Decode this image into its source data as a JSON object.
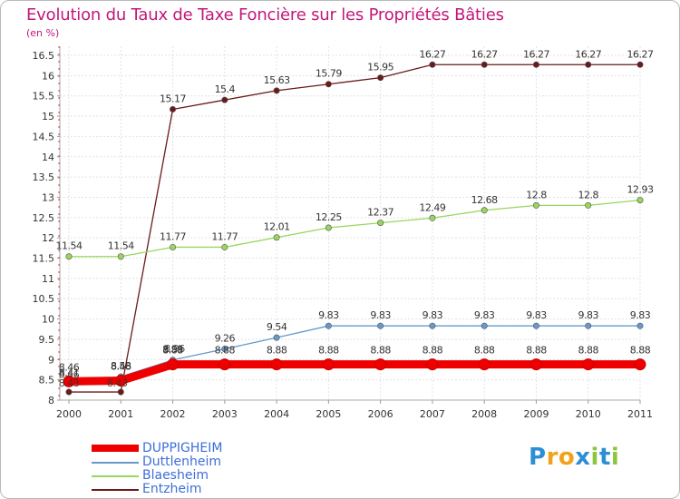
{
  "chart_data": {
    "type": "line",
    "title": "Evolution du Taux de Taxe Foncière sur les Propriétés Bâties",
    "subtitle": "(en %)",
    "categories": [
      "2000",
      "2001",
      "2002",
      "2003",
      "2004",
      "2005",
      "2006",
      "2007",
      "2008",
      "2009",
      "2010",
      "2011"
    ],
    "ylim": [
      8,
      16.5
    ],
    "yticks": [
      "8",
      "8.5",
      "9",
      "9.5",
      "10",
      "10.5",
      "11",
      "11.5",
      "12",
      "12.5",
      "13",
      "13.5",
      "14",
      "14.5",
      "15",
      "15.5",
      "16",
      "16.5"
    ],
    "grid": true,
    "series": [
      {
        "name": "Entzheim",
        "color": "#6b1a1a",
        "labels": [
          null,
          null,
          "15.17",
          "15.4",
          "15.63",
          "15.79",
          "15.95",
          "16.27",
          "16.27",
          "16.27",
          "16.27",
          "16.27"
        ],
        "values": [
          8.2,
          8.2,
          15.17,
          15.4,
          15.63,
          15.79,
          15.95,
          16.27,
          16.27,
          16.27,
          16.27,
          16.27
        ]
      },
      {
        "name": "Blaesheim",
        "color": "#99d65e",
        "labels": [
          "11.54",
          "11.54",
          "11.77",
          "11.77",
          "12.01",
          "12.25",
          "12.37",
          "12.49",
          "12.68",
          "12.8",
          "12.8",
          "12.93"
        ],
        "values": [
          11.54,
          11.54,
          11.77,
          11.77,
          12.01,
          12.25,
          12.37,
          12.49,
          12.68,
          12.8,
          12.8,
          12.93
        ]
      },
      {
        "name": "Duttlenheim",
        "color": "#6699cc",
        "labels": [
          "8.41",
          "8.58",
          "8.99",
          "9.26",
          "9.54",
          "9.83",
          "9.83",
          "9.83",
          "9.83",
          "9.83",
          "9.83",
          "9.83"
        ],
        "values": [
          8.41,
          8.58,
          8.99,
          9.26,
          9.54,
          9.83,
          9.83,
          9.83,
          9.83,
          9.83,
          9.83,
          9.83
        ]
      },
      {
        "name": "DUPPIGHEIM",
        "color": "#ee0000",
        "labels": [
          "8.46",
          "8.48",
          "8.88",
          "8.88",
          "8.88",
          "8.88",
          "8.88",
          "8.88",
          "8.88",
          "8.88",
          "8.88",
          "8.88"
        ],
        "values": [
          8.46,
          8.48,
          8.88,
          8.88,
          8.88,
          8.88,
          8.88,
          8.88,
          8.88,
          8.88,
          8.88,
          8.88
        ]
      }
    ],
    "extra_labels": [
      "8.43",
      "8.43",
      "8.46",
      "8.96"
    ],
    "legend": [
      {
        "name": "DUPPIGHEIM",
        "color": "#ee0000",
        "text_color": "#3d6ed8",
        "thick": true
      },
      {
        "name": "Duttlenheim",
        "color": "#6699cc",
        "text_color": "#3d6ed8",
        "thick": false
      },
      {
        "name": "Blaesheim",
        "color": "#99d65e",
        "text_color": "#3d6ed8",
        "thick": false
      },
      {
        "name": "Entzheim",
        "color": "#6b1a1a",
        "text_color": "#3d6ed8",
        "thick": false
      }
    ],
    "legend_position": "bottom-left"
  },
  "branding": {
    "logo_letters": [
      "P",
      "r",
      "o",
      "x",
      "i",
      "t",
      "i"
    ],
    "logo_colors": [
      "#2c8fd6",
      "#f2a21a",
      "#f2a21a",
      "#2c8fd6",
      "#8cc63f",
      "#2c8fd6",
      "#8cc63f"
    ]
  }
}
